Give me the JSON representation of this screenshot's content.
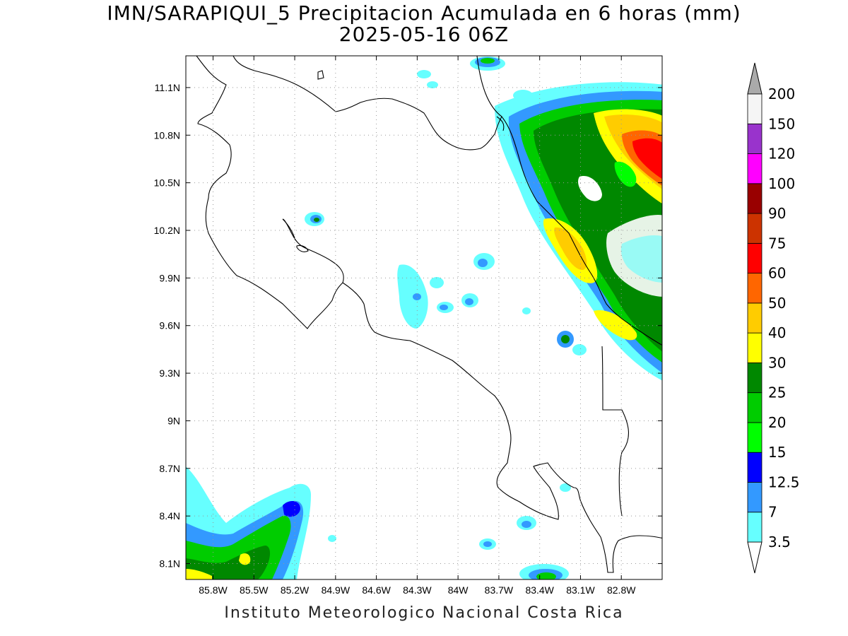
{
  "title": {
    "line1": "IMN/SARAPIQUI_5 Precipitacion Acumulada en 6 horas (mm)",
    "line2": "2025-05-16 06Z"
  },
  "map": {
    "lon_range": [
      -86.0,
      -82.5
    ],
    "lat_range": [
      8.0,
      11.3
    ],
    "lon_ticks": [
      {
        "value": -85.8,
        "label": "85.8W"
      },
      {
        "value": -85.5,
        "label": "85.5W"
      },
      {
        "value": -85.2,
        "label": "85.2W"
      },
      {
        "value": -84.9,
        "label": "84.9W"
      },
      {
        "value": -84.6,
        "label": "84.6W"
      },
      {
        "value": -84.3,
        "label": "84.3W"
      },
      {
        "value": -84.0,
        "label": "84W"
      },
      {
        "value": -83.7,
        "label": "83.7W"
      },
      {
        "value": -83.4,
        "label": "83.4W"
      },
      {
        "value": -83.1,
        "label": "83.1W"
      },
      {
        "value": -82.8,
        "label": "82.8W"
      }
    ],
    "lat_ticks": [
      {
        "value": 8.1,
        "label": "8.1N"
      },
      {
        "value": 8.4,
        "label": "8.4N"
      },
      {
        "value": 8.7,
        "label": "8.7N"
      },
      {
        "value": 9.0,
        "label": "9N"
      },
      {
        "value": 9.3,
        "label": "9.3N"
      },
      {
        "value": 9.6,
        "label": "9.6N"
      },
      {
        "value": 9.9,
        "label": "9.9N"
      },
      {
        "value": 10.2,
        "label": "10.2N"
      },
      {
        "value": 10.5,
        "label": "10.5N"
      },
      {
        "value": 10.8,
        "label": "10.8N"
      },
      {
        "value": 11.1,
        "label": "11.1N"
      }
    ],
    "gridlines": true
  },
  "colorbar": {
    "labels": [
      "3.5",
      "7",
      "12.5",
      "15",
      "20",
      "25",
      "30",
      "40",
      "50",
      "60",
      "75",
      "90",
      "100",
      "120",
      "150",
      "200"
    ],
    "colors": [
      "#66ffff",
      "#3399ff",
      "#0000ff",
      "#00ff00",
      "#00cc00",
      "#008800",
      "#ffff00",
      "#ffcc00",
      "#ff6600",
      "#ff0000",
      "#cc3300",
      "#990000",
      "#ff00ff",
      "#9933cc",
      "#f5f5f5"
    ],
    "under_color": "#ffffff",
    "over_color": "#aaaaaa"
  },
  "footer": "Instituto Meteorologico Nacional Costa Rica"
}
